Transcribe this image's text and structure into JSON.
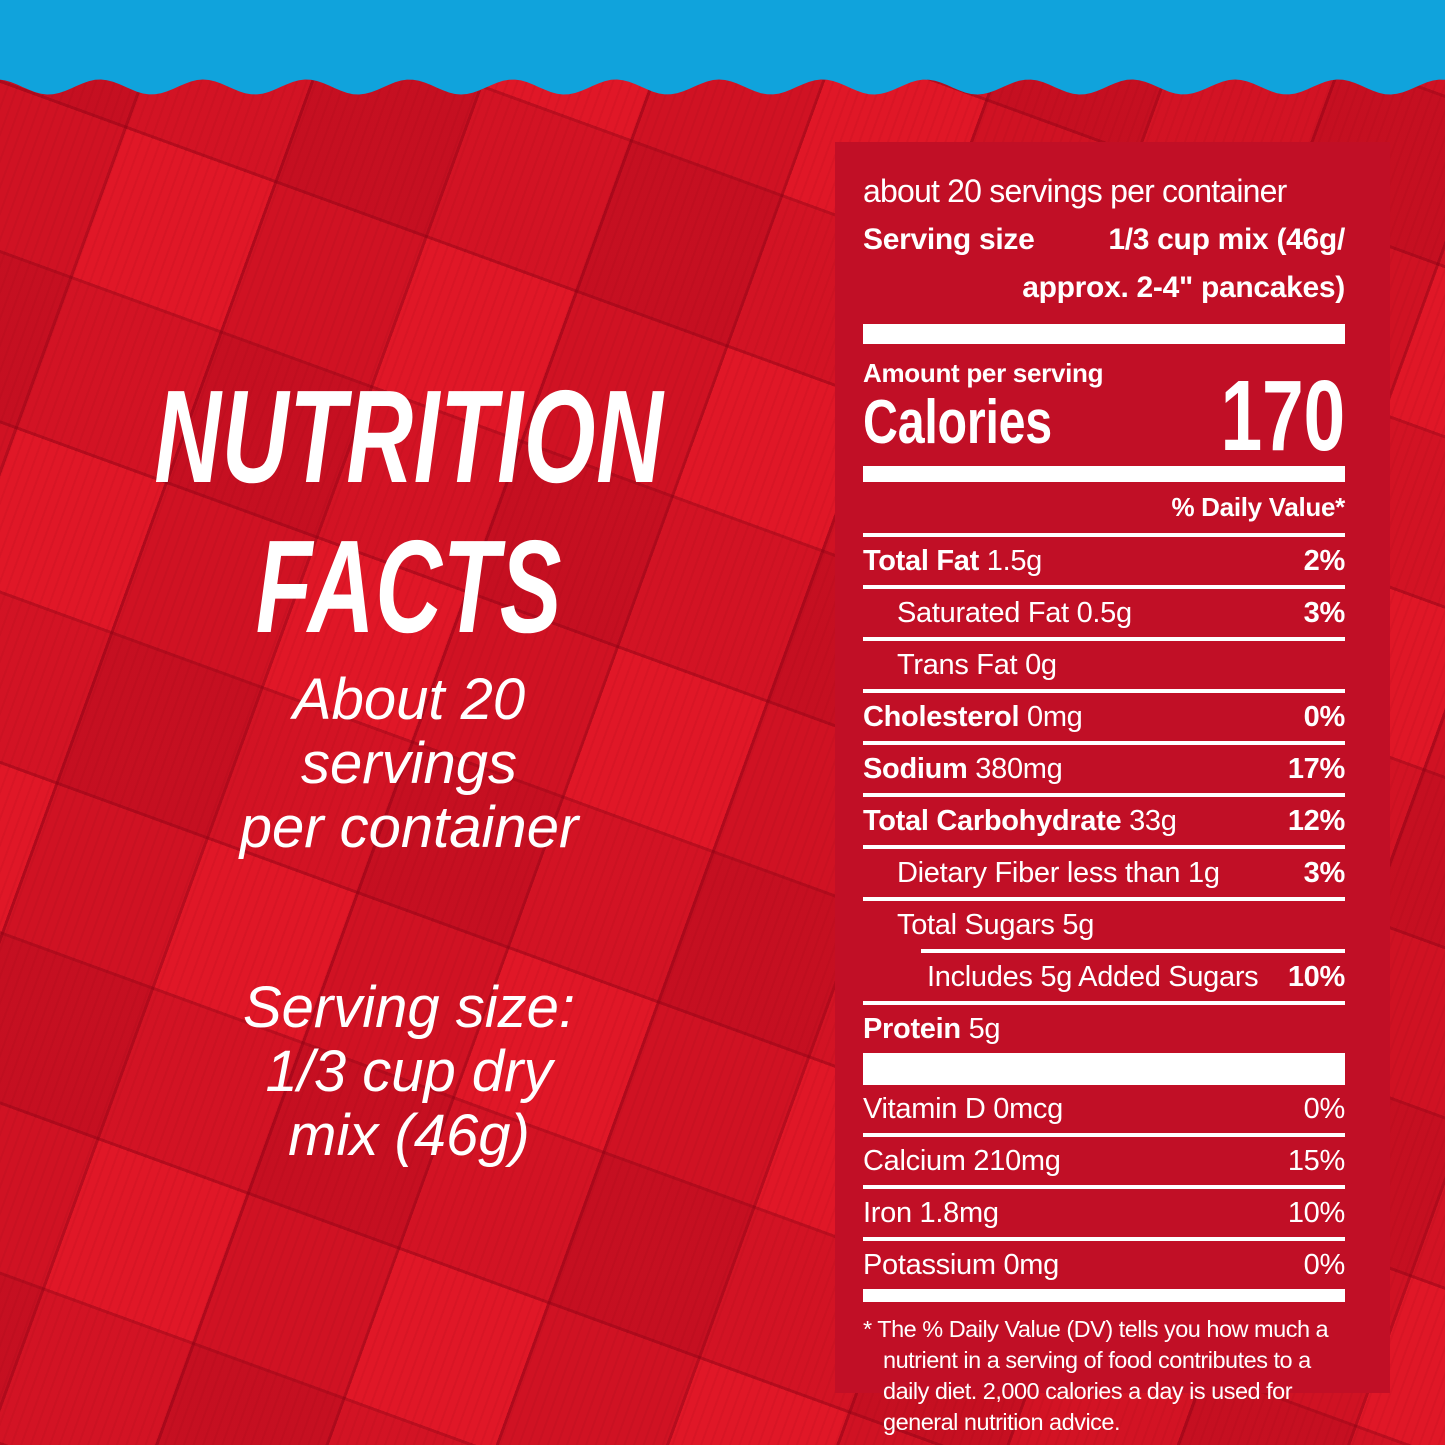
{
  "colors": {
    "blue_strip": "#10A3DC",
    "background_red": "#E01727",
    "panel_red": "#C10F26",
    "text_white": "#FFFFFF"
  },
  "left_panel": {
    "title_line1": "NUTRITION",
    "title_line2": "FACTS",
    "servings_line1": "About 20",
    "servings_line2": "servings",
    "servings_line3": "per container",
    "serving_size_line1": "Serving size:",
    "serving_size_line2": "1/3 cup dry",
    "serving_size_line3": "mix (46g)"
  },
  "nutrition_panel": {
    "servings_per_container": "about 20 servings per container",
    "serving_size_label": "Serving size",
    "serving_size_value_line1": "1/3 cup mix (46g/",
    "serving_size_value_line2": "approx. 2-4\" pancakes)",
    "amount_per_serving_label": "Amount per serving",
    "calories_label": "Calories",
    "calories_value": "170",
    "daily_value_header": "% Daily Value*",
    "nutrients": [
      {
        "name": "Total Fat",
        "amount": "1.5g",
        "dv": "2%",
        "name_bold": true,
        "dv_bold": true,
        "indent": 0
      },
      {
        "name": "Saturated Fat",
        "amount": "0.5g",
        "dv": "3%",
        "name_bold": false,
        "dv_bold": true,
        "indent": 1
      },
      {
        "name": "Trans Fat",
        "amount": "0g",
        "dv": "",
        "name_bold": false,
        "dv_bold": false,
        "indent": 1
      },
      {
        "name": "Cholesterol",
        "amount": "0mg",
        "dv": "0%",
        "name_bold": true,
        "dv_bold": true,
        "indent": 0
      },
      {
        "name": "Sodium",
        "amount": "380mg",
        "dv": "17%",
        "name_bold": true,
        "dv_bold": true,
        "indent": 0
      },
      {
        "name": "Total Carbohydrate",
        "amount": "33g",
        "dv": "12%",
        "name_bold": true,
        "dv_bold": true,
        "indent": 0
      },
      {
        "name": "Dietary Fiber",
        "amount": "less than 1g",
        "dv": "3%",
        "name_bold": false,
        "dv_bold": true,
        "indent": 1
      },
      {
        "name": "Total Sugars",
        "amount": "5g",
        "dv": "",
        "name_bold": false,
        "dv_bold": false,
        "indent": 1
      },
      {
        "name": "Includes 5g Added Sugars",
        "amount": "",
        "dv": "10%",
        "name_bold": false,
        "dv_bold": true,
        "indent": 2,
        "partial_rule": true
      },
      {
        "name": "Protein",
        "amount": "5g",
        "dv": "",
        "name_bold": true,
        "dv_bold": false,
        "indent": 0
      }
    ],
    "vitamins": [
      {
        "name": "Vitamin D",
        "amount": "0mcg",
        "dv": "0%"
      },
      {
        "name": "Calcium",
        "amount": "210mg",
        "dv": "15%"
      },
      {
        "name": "Iron",
        "amount": "1.8mg",
        "dv": "10%"
      },
      {
        "name": "Potassium",
        "amount": "0mg",
        "dv": "0%"
      }
    ],
    "footnote": "* The % Daily Value (DV) tells you how much a nutrient in a serving of food contributes to a daily diet. 2,000 calories a day is used for general nutrition advice."
  }
}
